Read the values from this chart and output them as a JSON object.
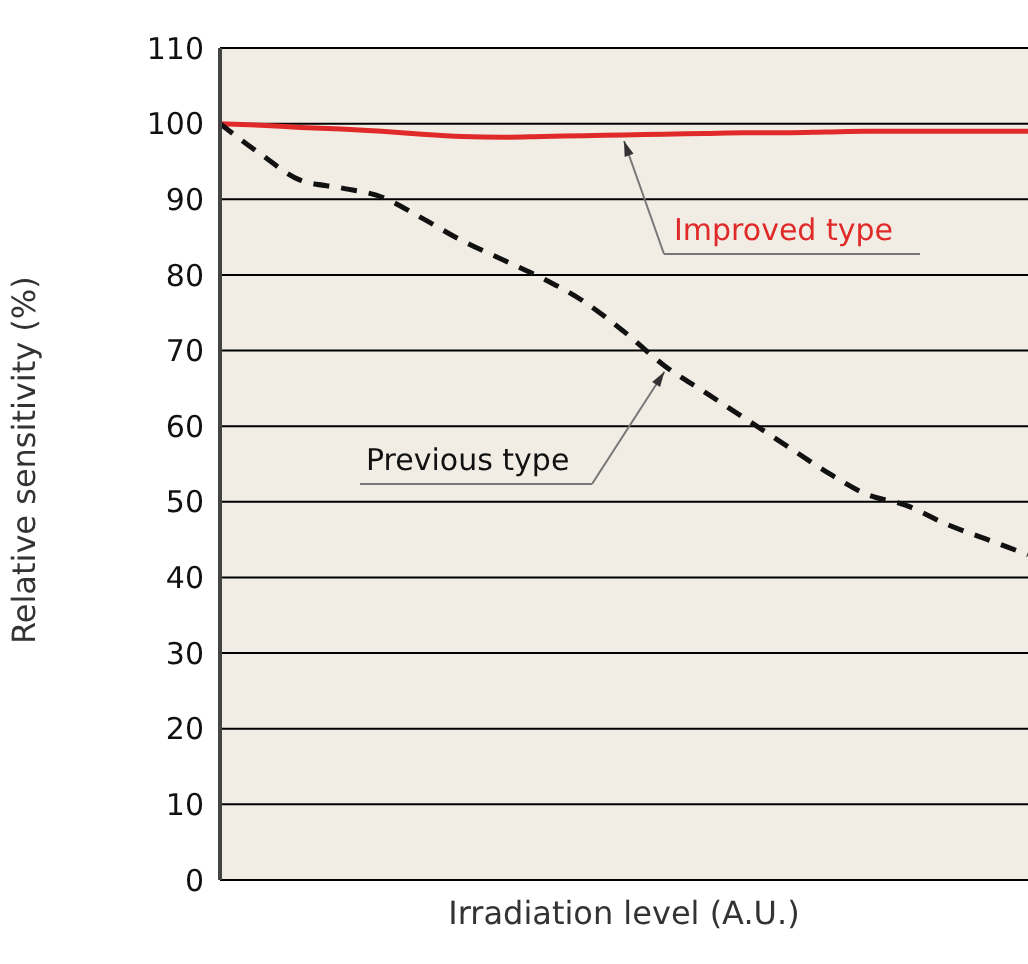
{
  "chart_data": {
    "type": "line",
    "xlabel": "Irradiation level (A.U.)",
    "ylabel": "Relative sensitivity (%)",
    "categories": [
      null,
      null,
      null,
      null,
      null,
      null,
      null,
      null,
      null,
      null,
      null,
      null,
      null,
      null,
      null,
      null,
      null,
      null,
      null,
      null,
      null
    ],
    "series": [
      {
        "name": "Improved type",
        "color": "#e02a2a",
        "line_style": "solid",
        "values": [
          100,
          99.8,
          99.5,
          99.3,
          99,
          98.6,
          98.3,
          98.2,
          98.3,
          98.4,
          98.5,
          98.6,
          98.7,
          98.8,
          98.8,
          98.9,
          99,
          99,
          99,
          99,
          99
        ]
      },
      {
        "name": "Previous type",
        "color": "#111111",
        "line_style": "dashed",
        "values": [
          100,
          96,
          92.5,
          91.5,
          90.3,
          87.5,
          84.5,
          82,
          79.5,
          76.5,
          72.5,
          68,
          64.5,
          61,
          57.5,
          54,
          51,
          49.5,
          47,
          45,
          43
        ]
      }
    ],
    "ylim": [
      0,
      110
    ],
    "yticks": [
      0,
      10,
      20,
      30,
      40,
      50,
      60,
      70,
      80,
      90,
      100,
      110
    ],
    "grid": "y",
    "legend": false,
    "marker": "none",
    "tick_labels": "y"
  }
}
